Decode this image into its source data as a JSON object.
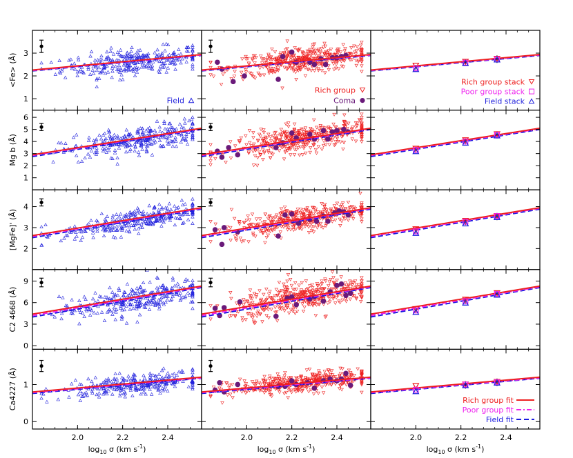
{
  "chart_data": {
    "type": "scatter",
    "title": "",
    "xlabel": "log10 σ (km s^-1)",
    "xlim": [
      1.8,
      2.55
    ],
    "xticks": [
      2.0,
      2.2,
      2.4
    ],
    "xtick_labels": [
      "2.0",
      "2.2",
      "2.4"
    ],
    "xlabel_parts": {
      "a": "log",
      "b": "10",
      "c": " σ (km s",
      "d": "-1",
      "e": ")"
    },
    "columns": [
      "field",
      "rich_group_and_coma",
      "stacks"
    ],
    "colors": {
      "field": "#2222dd",
      "rich": "#ee2020",
      "poor": "#ee22ee",
      "coma": "#6a1a7a",
      "field_fit": "#1a1ae0",
      "axis": "#000000"
    },
    "rows": [
      {
        "ylabel": "<Fe> (Å)",
        "ylim": [
          0.5,
          4.0
        ],
        "yticks": [
          1,
          2,
          3
        ],
        "ytick_labels": [
          "1",
          "2",
          "3"
        ],
        "fits": {
          "rich": [
            2.26,
            2.94
          ],
          "poor": [
            2.24,
            2.92
          ],
          "field": [
            2.22,
            2.9
          ]
        },
        "stacks": {
          "x": [
            2.0,
            2.22,
            2.36
          ],
          "rich": [
            2.45,
            2.62,
            2.75
          ],
          "poor": [
            2.33,
            2.58,
            2.73
          ],
          "field": [
            2.3,
            2.56,
            2.72
          ]
        },
        "errorbar": {
          "x": 1.84,
          "y": 3.3,
          "err": 0.27
        },
        "coma": {
          "x": [
            1.87,
            1.89,
            1.94,
            1.99,
            2.14,
            2.16,
            2.2,
            2.22,
            2.28,
            2.3,
            2.33,
            2.35,
            2.38,
            2.4,
            2.42,
            2.44
          ],
          "y": [
            2.6,
            2.3,
            1.75,
            2.0,
            1.85,
            2.85,
            3.05,
            2.6,
            2.6,
            2.5,
            2.75,
            2.5,
            2.8,
            2.8,
            2.85,
            2.9
          ]
        }
      },
      {
        "ylabel": "Mg b (Å)",
        "ylim": [
          0.0,
          6.6
        ],
        "yticks": [
          1,
          2,
          3,
          4,
          5,
          6
        ],
        "ytick_labels": [
          "1",
          "2",
          "3",
          "4",
          "5",
          "6"
        ],
        "fits": {
          "rich": [
            2.9,
            5.1
          ],
          "poor": [
            2.85,
            5.05
          ],
          "field": [
            2.75,
            5.0
          ]
        },
        "stacks": {
          "x": [
            2.0,
            2.22,
            2.36
          ],
          "rich": [
            3.4,
            4.1,
            4.6
          ],
          "poor": [
            3.3,
            4.0,
            4.55
          ],
          "field": [
            3.2,
            3.9,
            4.5
          ]
        },
        "errorbar": {
          "x": 1.84,
          "y": 5.2,
          "err": 0.3
        },
        "coma": {
          "x": [
            1.87,
            1.89,
            1.92,
            1.96,
            2.13,
            2.16,
            2.2,
            2.22,
            2.28,
            2.3,
            2.34,
            2.36,
            2.38,
            2.4,
            2.43,
            2.45
          ],
          "y": [
            3.2,
            2.7,
            3.5,
            2.9,
            3.5,
            3.9,
            4.7,
            4.3,
            4.6,
            4.2,
            4.9,
            4.2,
            4.8,
            4.9,
            5.0,
            4.8
          ]
        }
      },
      {
        "ylabel": "[MgFe]' (Å)",
        "ylim": [
          1.0,
          4.8
        ],
        "yticks": [
          2,
          3,
          4
        ],
        "ytick_labels": [
          "2",
          "3",
          "4"
        ],
        "fits": {
          "rich": [
            2.62,
            3.95
          ],
          "poor": [
            2.58,
            3.92
          ],
          "field": [
            2.52,
            3.88
          ]
        },
        "stacks": {
          "x": [
            2.0,
            2.22,
            2.36
          ],
          "rich": [
            2.92,
            3.32,
            3.55
          ],
          "poor": [
            2.82,
            3.28,
            3.55
          ],
          "field": [
            2.75,
            3.2,
            3.5
          ]
        },
        "errorbar": {
          "x": 1.84,
          "y": 4.2,
          "err": 0.17
        },
        "coma": {
          "x": [
            1.86,
            1.89,
            1.9,
            1.96,
            2.14,
            2.17,
            2.2,
            2.23,
            2.28,
            2.31,
            2.34,
            2.36,
            2.39,
            2.41,
            2.43,
            2.45
          ],
          "y": [
            2.9,
            2.2,
            3.0,
            2.8,
            2.6,
            3.6,
            3.65,
            3.2,
            3.4,
            3.3,
            3.55,
            3.3,
            3.7,
            3.8,
            3.75,
            3.6
          ]
        }
      },
      {
        "ylabel": "C2 4668 (Å)",
        "ylim": [
          -0.5,
          10.6
        ],
        "yticks": [
          0,
          3,
          6,
          9
        ],
        "ytick_labels": [
          "0",
          "3",
          "6",
          "9"
        ],
        "fits": {
          "rich": [
            4.4,
            8.3
          ],
          "poor": [
            4.2,
            8.2
          ],
          "field": [
            4.0,
            8.1
          ]
        },
        "stacks": {
          "x": [
            2.0,
            2.22,
            2.36
          ],
          "rich": [
            5.1,
            6.4,
            7.3
          ],
          "poor": [
            4.9,
            6.2,
            7.2
          ],
          "field": [
            4.7,
            6.0,
            7.1
          ]
        },
        "errorbar": {
          "x": 1.84,
          "y": 8.8,
          "err": 0.6
        },
        "coma": {
          "x": [
            1.86,
            1.88,
            1.9,
            1.97,
            2.13,
            2.18,
            2.2,
            2.22,
            2.28,
            2.3,
            2.34,
            2.37,
            2.4,
            2.42,
            2.44,
            2.46
          ],
          "y": [
            5.2,
            4.2,
            5.3,
            6.1,
            4.1,
            6.6,
            6.8,
            5.7,
            6.5,
            6.8,
            6.2,
            7.5,
            8.4,
            8.6,
            7.0,
            7.3
          ]
        }
      },
      {
        "ylabel": "Ca4227 (Å)",
        "ylim": [
          -0.2,
          1.95
        ],
        "yticks": [
          0,
          1
        ],
        "ytick_labels": [
          "0",
          "1"
        ],
        "fits": {
          "rich": [
            0.8,
            1.2
          ],
          "poor": [
            0.78,
            1.18
          ],
          "field": [
            0.76,
            1.17
          ]
        },
        "stacks": {
          "x": [
            2.0,
            2.22,
            2.36
          ],
          "rich": [
            0.96,
            1.0,
            1.07
          ],
          "poor": [
            0.86,
            1.0,
            1.06
          ],
          "field": [
            0.82,
            0.98,
            1.05
          ]
        },
        "errorbar": {
          "x": 1.84,
          "y": 1.5,
          "err": 0.15
        },
        "coma": {
          "x": [
            1.86,
            1.88,
            1.9,
            1.96,
            2.14,
            2.17,
            2.2,
            2.22,
            2.27,
            2.3,
            2.34,
            2.37,
            2.4,
            2.42,
            2.44,
            2.46
          ],
          "y": [
            0.85,
            1.05,
            0.8,
            1.0,
            0.95,
            0.95,
            1.1,
            1.0,
            1.05,
            0.9,
            1.1,
            1.15,
            1.1,
            1.15,
            1.3,
            0.98
          ]
        }
      }
    ],
    "legends": {
      "field": "Field",
      "rich_group": "Rich group",
      "coma": "Coma",
      "rich_stack": "Rich group stack",
      "poor_stack": "Poor group stack",
      "field_stack": "Field stack",
      "rich_fit": "Rich group fit",
      "poor_fit": "Poor group fit",
      "field_fit": "Field fit"
    }
  }
}
